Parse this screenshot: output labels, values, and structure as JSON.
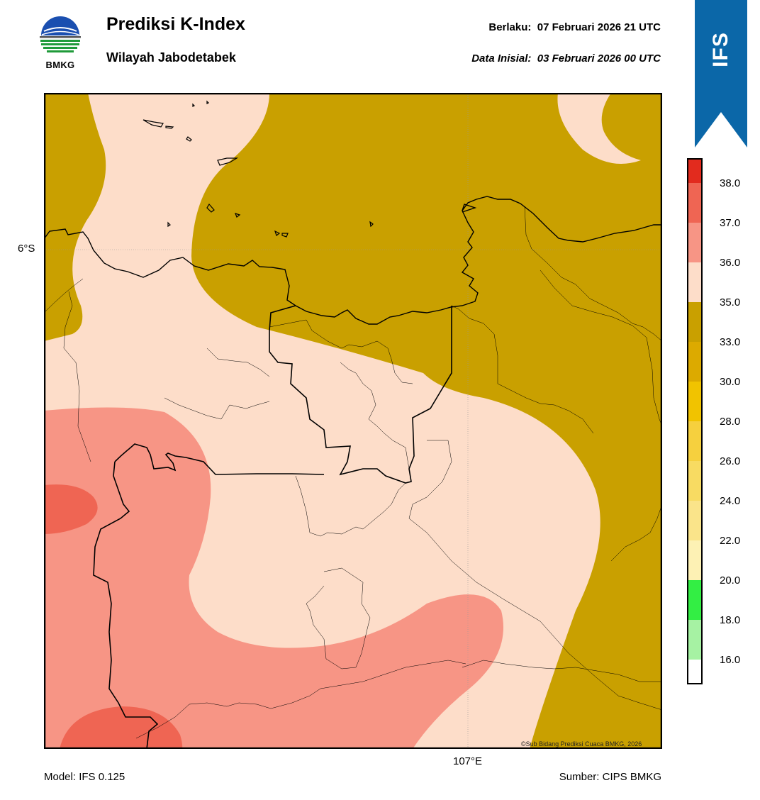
{
  "header": {
    "logo_text": "BMKG",
    "title": "Prediksi K-Index",
    "subtitle": "Wilayah Jabodetabek",
    "valid_label": "Berlaku:",
    "valid_value": "07 Februari 2026 21 UTC",
    "init_label": "Data Inisial:",
    "init_value": "03 Februari 2026 00 UTC",
    "ribbon_text": "IFS"
  },
  "map": {
    "lat_label": "6°S",
    "lon_label": "107°E",
    "credit": "©Sub Bidang Prediksi Cuaca BMKG, 2026"
  },
  "legend": {
    "ticks": [
      "38.0",
      "37.0",
      "36.0",
      "35.0",
      "33.0",
      "30.0",
      "28.0",
      "26.0",
      "24.0",
      "22.0",
      "20.0",
      "18.0",
      "16.0"
    ]
  },
  "footer": {
    "model": "Model: IFS 0.125",
    "source": "Sumber: CIPS BMKG"
  },
  "colors": {
    "ribbon": "#0b67a8",
    "k_33_35": "#c9a000",
    "k_35_36": "#fdddc9",
    "k_36_37": "#f79585",
    "k_37_38": "#ef6553",
    "k_38_plus": "#e22b1e"
  }
}
